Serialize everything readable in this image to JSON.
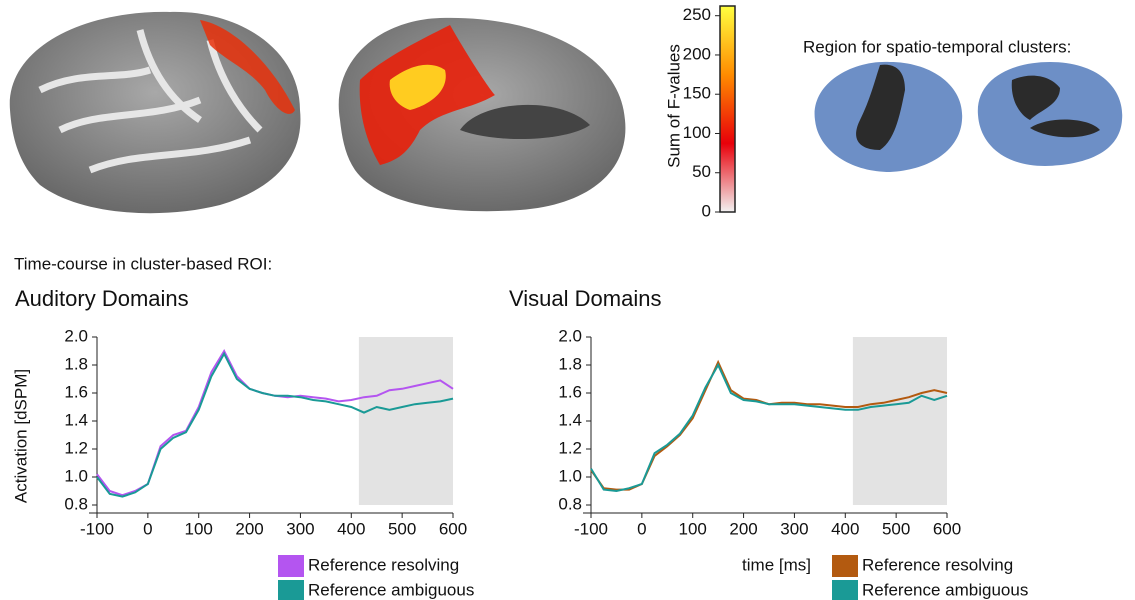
{
  "header": {
    "region_label": "Region for spatio-temporal clusters:",
    "timecourse_label": "Time-course in cluster-based ROI:"
  },
  "chart_data": [
    {
      "type": "colorbar",
      "ylabel": "Sum of F-values",
      "ylim": [
        0,
        270
      ],
      "yticks": [
        0,
        50,
        100,
        150,
        200,
        250
      ],
      "colors": [
        "#f2f2f2",
        "#e8000a",
        "#ff8c00",
        "#ffff40"
      ]
    },
    {
      "type": "line",
      "title": "Auditory Domains",
      "ylabel": "Activation [dSPM]",
      "x": [
        -100,
        -75,
        -50,
        -25,
        0,
        25,
        50,
        75,
        100,
        125,
        150,
        175,
        200,
        225,
        250,
        275,
        300,
        325,
        350,
        375,
        400,
        425,
        450,
        475,
        500,
        525,
        550,
        575,
        600
      ],
      "series": [
        {
          "name": "Reference resolving",
          "color": "#b455f0",
          "values": [
            1.02,
            0.9,
            0.87,
            0.9,
            0.95,
            1.22,
            1.3,
            1.33,
            1.5,
            1.75,
            1.9,
            1.72,
            1.63,
            1.6,
            1.58,
            1.57,
            1.58,
            1.57,
            1.56,
            1.54,
            1.55,
            1.57,
            1.58,
            1.62,
            1.63,
            1.65,
            1.67,
            1.69,
            1.63
          ]
        },
        {
          "name": "Reference ambiguous",
          "color": "#1a9a96",
          "values": [
            1.0,
            0.88,
            0.86,
            0.89,
            0.95,
            1.2,
            1.28,
            1.32,
            1.48,
            1.72,
            1.88,
            1.7,
            1.63,
            1.6,
            1.58,
            1.58,
            1.57,
            1.55,
            1.54,
            1.52,
            1.5,
            1.46,
            1.5,
            1.48,
            1.5,
            1.52,
            1.53,
            1.54,
            1.56
          ]
        }
      ],
      "shaded_region": [
        415,
        600
      ],
      "xlim": [
        -100,
        600
      ],
      "xticks": [
        -100,
        0,
        100,
        200,
        300,
        400,
        500,
        600
      ],
      "ylim": [
        0.8,
        2.0
      ],
      "yticks": [
        {
          "value": 0.8,
          "label": "0.8"
        },
        {
          "value": 1.0,
          "label": "1.0"
        },
        {
          "value": 1.2,
          "label": "1.2"
        },
        {
          "value": 1.4,
          "label": "1.4"
        },
        {
          "value": 1.6,
          "label": "1.6"
        },
        {
          "value": 1.8,
          "label": "1.8"
        },
        {
          "value": 2.0,
          "label": "2.0"
        }
      ]
    },
    {
      "type": "line",
      "title": "Visual Domains",
      "xlabel": "time [ms]",
      "x": [
        -100,
        -75,
        -50,
        -25,
        0,
        25,
        50,
        75,
        100,
        125,
        150,
        175,
        200,
        225,
        250,
        275,
        300,
        325,
        350,
        375,
        400,
        425,
        450,
        475,
        500,
        525,
        550,
        575,
        600
      ],
      "series": [
        {
          "name": "Reference resolving",
          "color": "#b35a10",
          "values": [
            1.05,
            0.92,
            0.91,
            0.91,
            0.95,
            1.15,
            1.22,
            1.3,
            1.42,
            1.62,
            1.82,
            1.62,
            1.56,
            1.55,
            1.52,
            1.53,
            1.53,
            1.52,
            1.52,
            1.51,
            1.5,
            1.5,
            1.52,
            1.53,
            1.55,
            1.57,
            1.6,
            1.62,
            1.6
          ]
        },
        {
          "name": "Reference ambiguous",
          "color": "#1a9a96",
          "values": [
            1.06,
            0.91,
            0.9,
            0.92,
            0.95,
            1.17,
            1.23,
            1.31,
            1.44,
            1.64,
            1.8,
            1.6,
            1.55,
            1.54,
            1.52,
            1.52,
            1.52,
            1.51,
            1.5,
            1.49,
            1.48,
            1.48,
            1.5,
            1.51,
            1.52,
            1.53,
            1.58,
            1.55,
            1.58
          ]
        }
      ],
      "shaded_region": [
        415,
        600
      ],
      "xlim": [
        -100,
        600
      ],
      "xticks": [
        -100,
        0,
        100,
        200,
        300,
        400,
        500,
        600
      ],
      "ylim": [
        0.8,
        2.0
      ],
      "yticks": [
        {
          "value": 0.8,
          "label": "0.8"
        },
        {
          "value": 1.0,
          "label": "1.0"
        },
        {
          "value": 1.2,
          "label": "1.2"
        },
        {
          "value": 1.4,
          "label": "1.4"
        },
        {
          "value": 1.6,
          "label": "1.6"
        },
        {
          "value": 1.8,
          "label": "1.8"
        },
        {
          "value": 2.0,
          "label": "2.0"
        }
      ]
    }
  ]
}
